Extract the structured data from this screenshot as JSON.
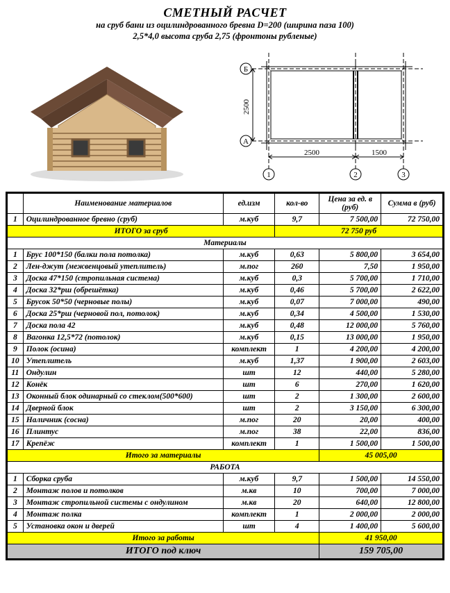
{
  "header": {
    "title": "СМЕТНЫЙ РАСЧЕТ",
    "line1": "на сруб бани из оцилиндрованного бревна D=200 (ширина паза 100)",
    "line2": "2,5*4,0 высота сруба 2,75 (фронтоны рубленые)"
  },
  "plan": {
    "dim_h": "2500",
    "dim_w1": "2500",
    "dim_w2": "1500",
    "labelA": "А",
    "labelB": "Б",
    "label1": "1",
    "label2": "2",
    "label3": "3"
  },
  "columns": {
    "name": "Наименование материалов",
    "unit": "ед.изм",
    "qty": "кол-во",
    "price": "Цена за ед. в (руб)",
    "sum": "Сумма в (руб)"
  },
  "srub": {
    "row": {
      "n": "1",
      "name": "Оцилиндрованное бревно (сруб)",
      "unit": "м.куб",
      "qty": "9,7",
      "price": "7 500,00",
      "sum": "72 750,00"
    },
    "total_label": "ИТОГО за сруб",
    "total_value": "72 750 руб"
  },
  "materials": {
    "section": "Материалы",
    "rows": [
      {
        "n": "1",
        "name": "Брус 100*150 (балки пола потолка)",
        "unit": "м.куб",
        "qty": "0,63",
        "price": "5 800,00",
        "sum": "3 654,00"
      },
      {
        "n": "2",
        "name": "Лен-джут (межвенцовый утеплитель)",
        "unit": "м.пог",
        "qty": "260",
        "price": "7,50",
        "sum": "1 950,00"
      },
      {
        "n": "3",
        "name": "Доска 47*150 (стропильная система)",
        "unit": "м.куб",
        "qty": "0,3",
        "price": "5 700,00",
        "sum": "1 710,00"
      },
      {
        "n": "4",
        "name": "Доска 32*рш (обрешётка)",
        "unit": "м.куб",
        "qty": "0,46",
        "price": "5 700,00",
        "sum": "2 622,00"
      },
      {
        "n": "5",
        "name": "Брусок 50*50 (черновые полы)",
        "unit": "м.куб",
        "qty": "0,07",
        "price": "7 000,00",
        "sum": "490,00"
      },
      {
        "n": "6",
        "name": "Доска 25*рш (черновой пол, потолок)",
        "unit": "м.куб",
        "qty": "0,34",
        "price": "4 500,00",
        "sum": "1 530,00"
      },
      {
        "n": "7",
        "name": "Доска пола 42",
        "unit": "м.куб",
        "qty": "0,48",
        "price": "12 000,00",
        "sum": "5 760,00"
      },
      {
        "n": "8",
        "name": "Вагонка 12,5*72 (потолок)",
        "unit": "м.куб",
        "qty": "0,15",
        "price": "13 000,00",
        "sum": "1 950,00"
      },
      {
        "n": "9",
        "name": "Полок (осина)",
        "unit": "комплект",
        "qty": "1",
        "price": "4 200,00",
        "sum": "4 200,00"
      },
      {
        "n": "10",
        "name": "Утеплитель",
        "unit": "м.куб",
        "qty": "1,37",
        "price": "1 900,00",
        "sum": "2 603,00"
      },
      {
        "n": "11",
        "name": "Ондулин",
        "unit": "шт",
        "qty": "12",
        "price": "440,00",
        "sum": "5 280,00"
      },
      {
        "n": "12",
        "name": "Конёк",
        "unit": "шт",
        "qty": "6",
        "price": "270,00",
        "sum": "1 620,00"
      },
      {
        "n": "13",
        "name": "Оконный блок одинарный со стеклом(500*600)",
        "unit": "шт",
        "qty": "2",
        "price": "1 300,00",
        "sum": "2 600,00"
      },
      {
        "n": "14",
        "name": "Дверной блок",
        "unit": "шт",
        "qty": "2",
        "price": "3 150,00",
        "sum": "6 300,00"
      },
      {
        "n": "15",
        "name": "Наличник (сосна)",
        "unit": "м.пог",
        "qty": "20",
        "price": "20,00",
        "sum": "400,00"
      },
      {
        "n": "16",
        "name": "Плинтус",
        "unit": "м.пог",
        "qty": "38",
        "price": "22,00",
        "sum": "836,00"
      },
      {
        "n": "17",
        "name": "Крепёж",
        "unit": "комплект",
        "qty": "1",
        "price": "1 500,00",
        "sum": "1 500,00"
      }
    ],
    "total_label": "Итого за материалы",
    "total_value": "45 005,00"
  },
  "work": {
    "section": "РАБОТА",
    "rows": [
      {
        "n": "1",
        "name": "Сборка сруба",
        "unit": "м.куб",
        "qty": "9,7",
        "price": "1 500,00",
        "sum": "14 550,00"
      },
      {
        "n": "2",
        "name": "Монтаж полов и потолков",
        "unit": "м.кв",
        "qty": "10",
        "price": "700,00",
        "sum": "7 000,00"
      },
      {
        "n": "3",
        "name": "Монтаж стропильной системы с ондулином",
        "unit": "м.кв",
        "qty": "20",
        "price": "640,00",
        "sum": "12 800,00"
      },
      {
        "n": "4",
        "name": "Монтаж полка",
        "unit": "комплект",
        "qty": "1",
        "price": "2 000,00",
        "sum": "2 000,00"
      },
      {
        "n": "5",
        "name": "Установка окон и дверей",
        "unit": "шт",
        "qty": "4",
        "price": "1 400,00",
        "sum": "5 600,00"
      }
    ],
    "total_label": "Итого за работы",
    "total_value": "41 950,00"
  },
  "grand": {
    "label": "ИТОГО под ключ",
    "value": "159 705,00"
  },
  "colors": {
    "highlight": "#ffff00",
    "grand_bg": "#c0c0c0",
    "border": "#000000",
    "log_light": "#d9b889",
    "log_dark": "#b8935f",
    "roof": "#6b4a36"
  }
}
